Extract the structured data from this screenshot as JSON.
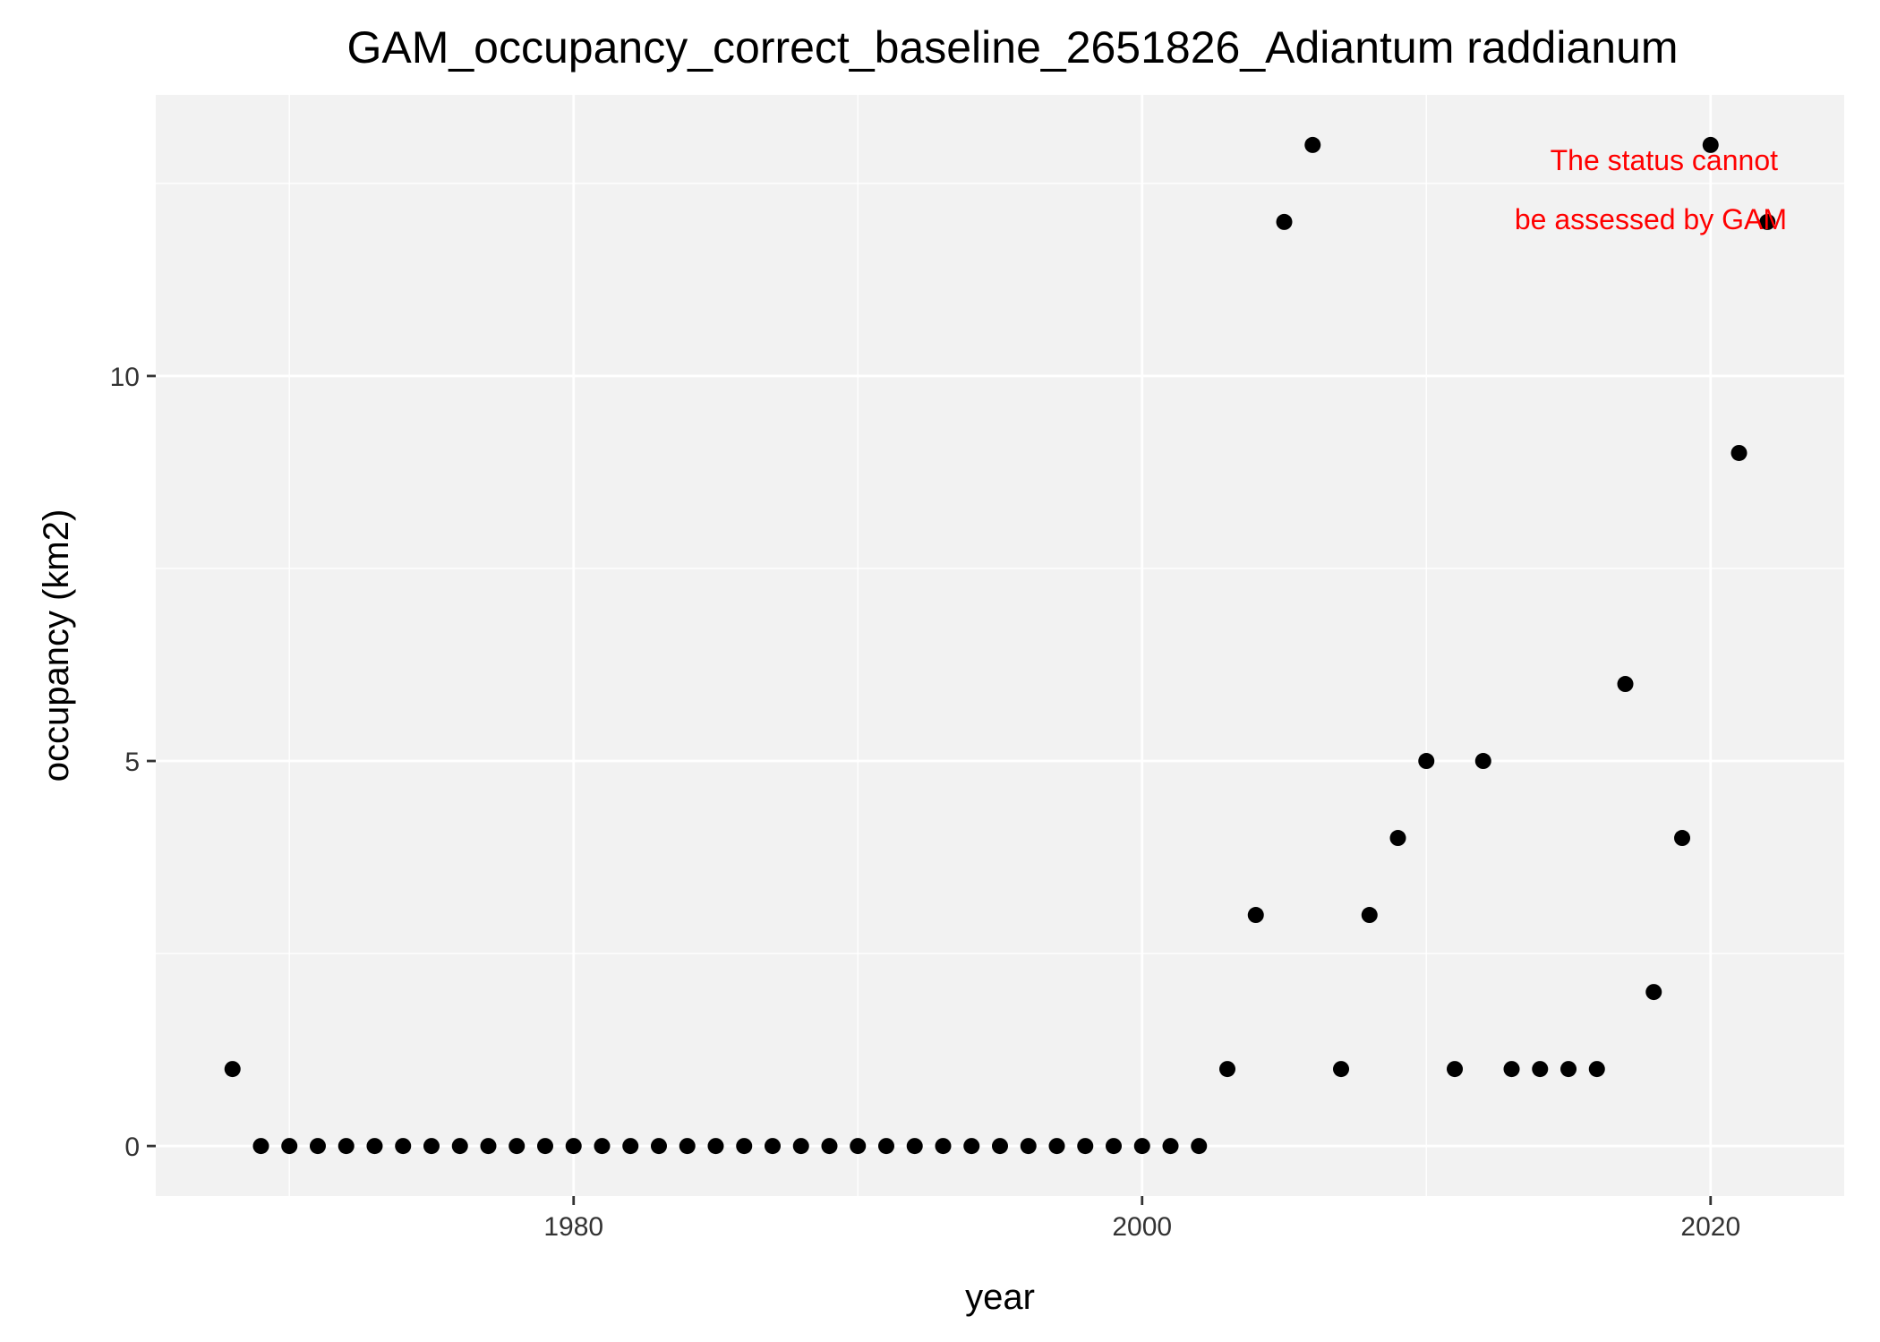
{
  "chart_data": {
    "type": "scatter",
    "title": "GAM_occupancy_correct_baseline_2651826_Adiantum raddianum",
    "xlabel": "year",
    "ylabel": "occupancy (km2)",
    "xlim": [
      1965.3,
      2024.7
    ],
    "ylim": [
      -0.65,
      13.65
    ],
    "x_ticks": [
      1980,
      2000,
      2020
    ],
    "y_ticks": [
      0,
      5,
      10
    ],
    "x_minor_ticks": [
      1970,
      1990,
      2010
    ],
    "y_minor_ticks": [
      2.5,
      7.5,
      12.5
    ],
    "grid": true,
    "legend": "none",
    "x": [
      1968,
      1969,
      1970,
      1971,
      1972,
      1973,
      1974,
      1975,
      1976,
      1977,
      1978,
      1979,
      1980,
      1981,
      1982,
      1983,
      1984,
      1985,
      1986,
      1987,
      1988,
      1989,
      1990,
      1991,
      1992,
      1993,
      1994,
      1995,
      1996,
      1997,
      1998,
      1999,
      2000,
      2001,
      2002,
      2003,
      2004,
      2005,
      2006,
      2007,
      2008,
      2009,
      2010,
      2011,
      2012,
      2013,
      2014,
      2015,
      2016,
      2017,
      2018,
      2019,
      2020,
      2021,
      2022
    ],
    "y": [
      1,
      0,
      0,
      0,
      0,
      0,
      0,
      0,
      0,
      0,
      0,
      0,
      0,
      0,
      0,
      0,
      0,
      0,
      0,
      0,
      0,
      0,
      0,
      0,
      0,
      0,
      0,
      0,
      0,
      0,
      0,
      0,
      0,
      0,
      0,
      1,
      3,
      12,
      13,
      1,
      3,
      4,
      5,
      1,
      5,
      1,
      1,
      1,
      1,
      6,
      2,
      4,
      13,
      9,
      12
    ],
    "annotation": {
      "lines": [
        "The status cannot",
        "be assessed by GAM"
      ],
      "color": "#FF0000"
    },
    "colors": {
      "panel": "#F2F2F2",
      "grid": "#FFFFFF",
      "point": "#000000"
    }
  }
}
